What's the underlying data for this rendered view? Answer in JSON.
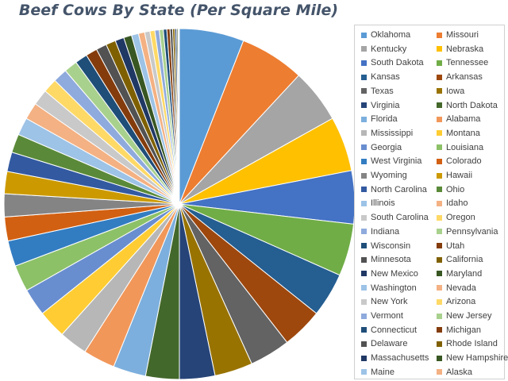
{
  "chart_data": {
    "type": "pie",
    "title": "Beef Cows By State (Per Square Mile)",
    "legend_position": "right",
    "series": [
      {
        "labels": [
          "Oklahoma",
          "Missouri",
          "Kentucky",
          "Nebraska",
          "South Dakota",
          "Tennessee",
          "Kansas",
          "Arkansas",
          "Texas",
          "Iowa",
          "Virginia",
          "North Dakota",
          "Florida",
          "Alabama",
          "Mississippi",
          "Montana",
          "Georgia",
          "Louisiana",
          "West Virginia",
          "Colorado",
          "Wyoming",
          "Hawaii",
          "North Carolina",
          "Ohio",
          "Illinois",
          "Idaho",
          "South Carolina",
          "Oregon",
          "Indiana",
          "Pennsylvania",
          "Wisconsin",
          "Utah",
          "Minnesota",
          "California",
          "New Mexico",
          "Maryland",
          "Washington",
          "Nevada",
          "New York",
          "Arizona",
          "Vermont",
          "New Jersey",
          "Connecticut",
          "Michigan",
          "Delaware",
          "Rhode Island",
          "Massachusetts",
          "New Hampshire",
          "Maine",
          "Alaska"
        ],
        "values": [
          7.3,
          7.3,
          6.1,
          6.2,
          6.0,
          5.9,
          5.0,
          4.6,
          4.6,
          4.3,
          4.0,
          3.8,
          3.7,
          3.6,
          3.2,
          3.2,
          3.1,
          3.0,
          2.9,
          2.7,
          2.6,
          2.5,
          2.2,
          2.1,
          2.0,
          1.9,
          1.8,
          1.6,
          1.6,
          1.5,
          1.4,
          1.3,
          1.2,
          1.1,
          1.0,
          0.9,
          0.8,
          0.7,
          0.6,
          0.55,
          0.5,
          0.45,
          0.4,
          0.35,
          0.3,
          0.25,
          0.2,
          0.15,
          0.1,
          0.05
        ]
      }
    ],
    "colors": [
      "#5b9bd5",
      "#ed7d31",
      "#a5a5a5",
      "#ffc000",
      "#4472c4",
      "#70ad47",
      "#255e91",
      "#9e480e",
      "#636363",
      "#997300",
      "#264478",
      "#43682b",
      "#7cafdd",
      "#f1975a",
      "#b7b7b7",
      "#ffcd33",
      "#698ed0",
      "#8cc168",
      "#327dc2",
      "#d26012",
      "#848484",
      "#cc9a00",
      "#335aa1",
      "#5a8a39",
      "#9dc3e6",
      "#f4b183",
      "#c9c9c9",
      "#ffd966",
      "#8faadc",
      "#a9d18e",
      "#1f4e79",
      "#843c0c",
      "#525252",
      "#7f6000",
      "#203864",
      "#385723",
      "#9dc3e6",
      "#f4b183",
      "#c9c9c9",
      "#ffd966",
      "#8faadc",
      "#a9d18e",
      "#1f4e79",
      "#843c0c",
      "#525252",
      "#7f6000",
      "#203864",
      "#385723",
      "#9dc3e6",
      "#f4b183"
    ]
  }
}
